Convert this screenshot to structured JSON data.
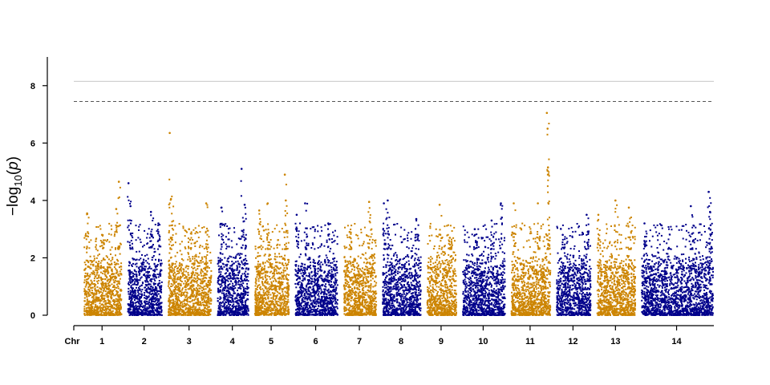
{
  "chart_data": {
    "type": "scatter",
    "subtype": "manhattan",
    "title": "",
    "xlabel": "",
    "ylabel_main": "−log",
    "ylabel_sub": "10",
    "ylabel_var": "p",
    "x_axis_prefix": "Chr",
    "ylim": [
      0,
      9
    ],
    "yticks": [
      0,
      2,
      4,
      6,
      8
    ],
    "colors": {
      "odd": "#CC8400",
      "even": "#00008B",
      "threshold_solid": "#C8C8C8",
      "threshold_dashed": "#555555"
    },
    "thresholds": [
      {
        "value": 8.15,
        "style": "solid"
      },
      {
        "value": 7.45,
        "style": "dashed"
      }
    ],
    "chromosomes": [
      {
        "label": "1",
        "length": 46,
        "color": "odd",
        "peaks": [
          [
            0.1,
            3.55
          ],
          [
            0.5,
            2.8
          ],
          [
            0.88,
            3.7
          ],
          [
            0.95,
            4.65
          ]
        ]
      },
      {
        "label": "2",
        "length": 42,
        "color": "even",
        "peaks": [
          [
            0.04,
            4.6
          ],
          [
            0.1,
            3.8
          ],
          [
            0.7,
            3.6
          ],
          [
            0.92,
            3.2
          ]
        ]
      },
      {
        "label": "3",
        "length": 53,
        "color": "odd",
        "peaks": [
          [
            0.05,
            6.35
          ],
          [
            0.08,
            4.05
          ],
          [
            0.5,
            3.0
          ],
          [
            0.9,
            3.9
          ]
        ]
      },
      {
        "label": "4",
        "length": 38,
        "color": "even",
        "peaks": [
          [
            0.15,
            3.75
          ],
          [
            0.8,
            5.1
          ],
          [
            0.9,
            3.85
          ]
        ]
      },
      {
        "label": "5",
        "length": 42,
        "color": "odd",
        "peaks": [
          [
            0.15,
            3.65
          ],
          [
            0.4,
            3.9
          ],
          [
            0.9,
            4.9
          ],
          [
            0.93,
            4.0
          ]
        ]
      },
      {
        "label": "6",
        "length": 52,
        "color": "even",
        "peaks": [
          [
            0.05,
            3.5
          ],
          [
            0.25,
            3.9
          ],
          [
            0.8,
            3.2
          ]
        ]
      },
      {
        "label": "7",
        "length": 40,
        "color": "odd",
        "peaks": [
          [
            0.2,
            2.9
          ],
          [
            0.8,
            3.95
          ]
        ]
      },
      {
        "label": "8",
        "length": 47,
        "color": "even",
        "peaks": [
          [
            0.05,
            3.9
          ],
          [
            0.15,
            4.0
          ],
          [
            0.9,
            3.35
          ]
        ]
      },
      {
        "label": "9",
        "length": 36,
        "color": "odd",
        "peaks": [
          [
            0.45,
            3.85
          ],
          [
            0.8,
            2.7
          ]
        ]
      },
      {
        "label": "10",
        "length": 52,
        "color": "even",
        "peaks": [
          [
            0.3,
            3.0
          ],
          [
            0.7,
            3.3
          ],
          [
            0.92,
            3.9
          ]
        ]
      },
      {
        "label": "11",
        "length": 48,
        "color": "odd",
        "peaks": [
          [
            0.08,
            3.9
          ],
          [
            0.7,
            3.9
          ],
          [
            0.93,
            7.05
          ],
          [
            0.95,
            6.5
          ],
          [
            0.96,
            5.15
          ]
        ]
      },
      {
        "label": "12",
        "length": 42,
        "color": "even",
        "peaks": [
          [
            0.2,
            2.8
          ],
          [
            0.9,
            3.5
          ]
        ]
      },
      {
        "label": "13",
        "length": 47,
        "color": "odd",
        "peaks": [
          [
            0.05,
            3.5
          ],
          [
            0.5,
            4.0
          ],
          [
            0.85,
            3.75
          ]
        ]
      },
      {
        "label": "14",
        "length": 88,
        "color": "even",
        "peaks": [
          [
            0.05,
            3.2
          ],
          [
            0.7,
            3.8
          ],
          [
            0.95,
            4.3
          ],
          [
            0.97,
            3.6
          ]
        ]
      }
    ],
    "base_top": 2.3
  }
}
